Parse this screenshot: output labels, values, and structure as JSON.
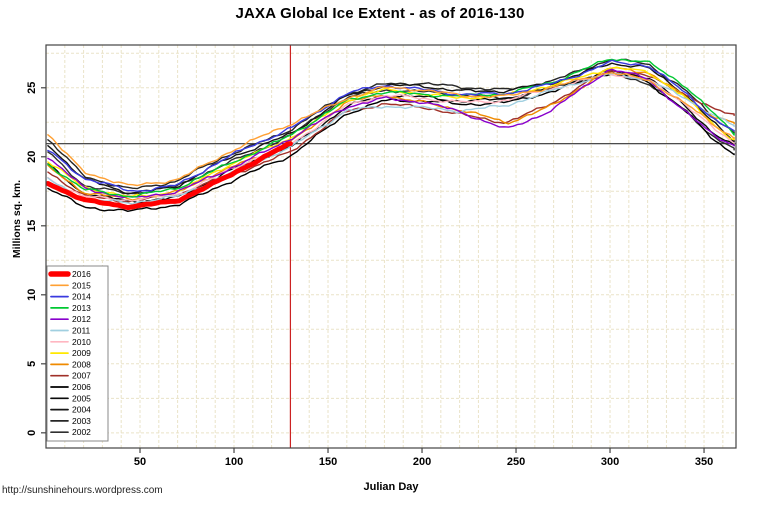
{
  "page": {
    "title": "JAXA Global Ice Extent - as of 2016-130",
    "url_note": "http://sunshinehours.wordpress.com"
  },
  "chart_data": {
    "type": "line",
    "title": "JAXA Global Ice Extent - as of 2016-130",
    "xlabel": "Julian Day",
    "ylabel": "Millions sq. km.",
    "x_ticks": [
      50,
      100,
      150,
      200,
      250,
      300,
      350
    ],
    "y_ticks": [
      0,
      5,
      10,
      15,
      20,
      25
    ],
    "xlim": [
      0,
      367
    ],
    "ylim": [
      -1.1,
      28.1
    ],
    "grid": {
      "on": true,
      "x_step_days": 10,
      "y_step_units": 2.5,
      "color": "#eae3c8"
    },
    "markers": {
      "current_day": 130,
      "current_extent": 20.95,
      "vline_color": "#cc2222",
      "hline_color": "#333333"
    },
    "legend_position": "bottom-left",
    "anchor_days": [
      1,
      20,
      45,
      70,
      95,
      130,
      160,
      180,
      200,
      220,
      245,
      270,
      300,
      320,
      340,
      355,
      366
    ],
    "series": [
      {
        "name": "2016",
        "color": "#ff0000",
        "width": 5,
        "noise": 0.5,
        "values": [
          18.1,
          16.9,
          16.35,
          16.8,
          18.5,
          20.95
        ]
      },
      {
        "name": "2015",
        "color": "#ffa033",
        "width": 1.4,
        "noise": 1,
        "values": [
          21.7,
          18.9,
          17.8,
          18.4,
          20.2,
          22.35,
          24.3,
          25.0,
          24.8,
          24.5,
          24.4,
          25.0,
          26.2,
          25.6,
          23.8,
          22.3,
          21.4
        ]
      },
      {
        "name": "2014",
        "color": "#3a3adf",
        "width": 1.4,
        "noise": 1,
        "values": [
          20.5,
          18.4,
          17.5,
          18.0,
          19.8,
          22.1,
          24.6,
          25.1,
          24.9,
          24.6,
          24.5,
          25.3,
          26.9,
          26.6,
          24.6,
          22.8,
          21.9
        ]
      },
      {
        "name": "2013",
        "color": "#00c832",
        "width": 1.4,
        "noise": 1,
        "values": [
          19.4,
          17.6,
          17.2,
          17.7,
          19.3,
          21.6,
          24.0,
          24.7,
          24.6,
          24.4,
          24.5,
          25.5,
          27.1,
          26.8,
          25.2,
          23.2,
          21.7
        ]
      },
      {
        "name": "2012",
        "color": "#8800cc",
        "width": 1.4,
        "noise": 1,
        "values": [
          19.9,
          17.8,
          17.0,
          17.4,
          19.0,
          21.3,
          23.6,
          24.3,
          24.0,
          23.2,
          22.0,
          23.5,
          26.3,
          25.7,
          23.3,
          21.6,
          20.8
        ]
      },
      {
        "name": "2011",
        "color": "#a0cfe0",
        "width": 1.4,
        "noise": 1,
        "values": [
          18.4,
          17.0,
          16.6,
          17.1,
          18.7,
          20.6,
          23.4,
          23.7,
          23.5,
          23.3,
          23.8,
          24.8,
          26.0,
          25.7,
          24.2,
          23.0,
          22.2
        ]
      },
      {
        "name": "2010",
        "color": "#ffb6c1",
        "width": 1.4,
        "noise": 1,
        "values": [
          18.5,
          17.1,
          16.8,
          17.3,
          18.9,
          20.9,
          23.8,
          24.4,
          24.2,
          24.0,
          24.1,
          24.9,
          26.1,
          25.6,
          23.8,
          22.0,
          21.0
        ]
      },
      {
        "name": "2009",
        "color": "#ffe800",
        "width": 1.4,
        "noise": 1,
        "values": [
          19.7,
          17.7,
          17.1,
          17.5,
          19.2,
          21.4,
          24.1,
          24.8,
          24.6,
          24.3,
          24.4,
          25.2,
          26.5,
          26.1,
          24.3,
          22.4,
          21.3
        ]
      },
      {
        "name": "2008",
        "color": "#ef8a00",
        "width": 1.4,
        "noise": 1,
        "values": [
          19.2,
          17.4,
          17.0,
          17.4,
          19.0,
          21.1,
          23.9,
          24.5,
          24.0,
          23.4,
          22.4,
          23.8,
          26.4,
          26.1,
          24.4,
          23.0,
          22.4
        ]
      },
      {
        "name": "2007",
        "color": "#a03028",
        "width": 1.4,
        "noise": 1,
        "values": [
          18.9,
          17.2,
          16.8,
          17.2,
          18.6,
          20.3,
          23.3,
          23.9,
          23.6,
          23.0,
          22.5,
          24.0,
          26.2,
          25.9,
          24.6,
          23.4,
          23.0
        ]
      },
      {
        "name": "2006",
        "color": "#000000",
        "width": 1.4,
        "noise": 1,
        "values": [
          17.8,
          16.4,
          16.0,
          16.5,
          18.1,
          20.0,
          23.2,
          24.1,
          24.0,
          23.8,
          24.0,
          24.7,
          26.1,
          25.5,
          23.3,
          21.2,
          20.2
        ]
      },
      {
        "name": "2005",
        "color": "#0a0a0a",
        "width": 1.4,
        "noise": 1,
        "values": [
          19.5,
          17.3,
          16.7,
          17.1,
          18.8,
          20.7,
          23.7,
          24.4,
          24.3,
          24.1,
          24.2,
          25.0,
          26.3,
          25.8,
          23.6,
          21.7,
          20.8
        ]
      },
      {
        "name": "2004",
        "color": "#151515",
        "width": 1.4,
        "noise": 1,
        "values": [
          20.9,
          18.3,
          17.4,
          17.9,
          19.7,
          21.7,
          24.4,
          25.1,
          25.2,
          24.8,
          24.7,
          25.4,
          26.8,
          26.4,
          24.5,
          22.5,
          21.2
        ]
      },
      {
        "name": "2003",
        "color": "#262626",
        "width": 1.4,
        "noise": 1,
        "values": [
          21.2,
          18.6,
          17.7,
          18.2,
          20.0,
          22.0,
          24.5,
          25.3,
          25.4,
          25.0,
          24.8,
          25.6,
          27.0,
          26.7,
          24.9,
          22.9,
          21.8
        ]
      },
      {
        "name": "2002",
        "color": "#303030",
        "width": 1.4,
        "noise": 1,
        "values": [
          20.3,
          18.0,
          17.3,
          17.8,
          19.5,
          21.5,
          24.3,
          24.9,
          24.7,
          24.4,
          24.3,
          25.0,
          26.0,
          25.4,
          23.4,
          21.4,
          20.5
        ]
      }
    ]
  }
}
